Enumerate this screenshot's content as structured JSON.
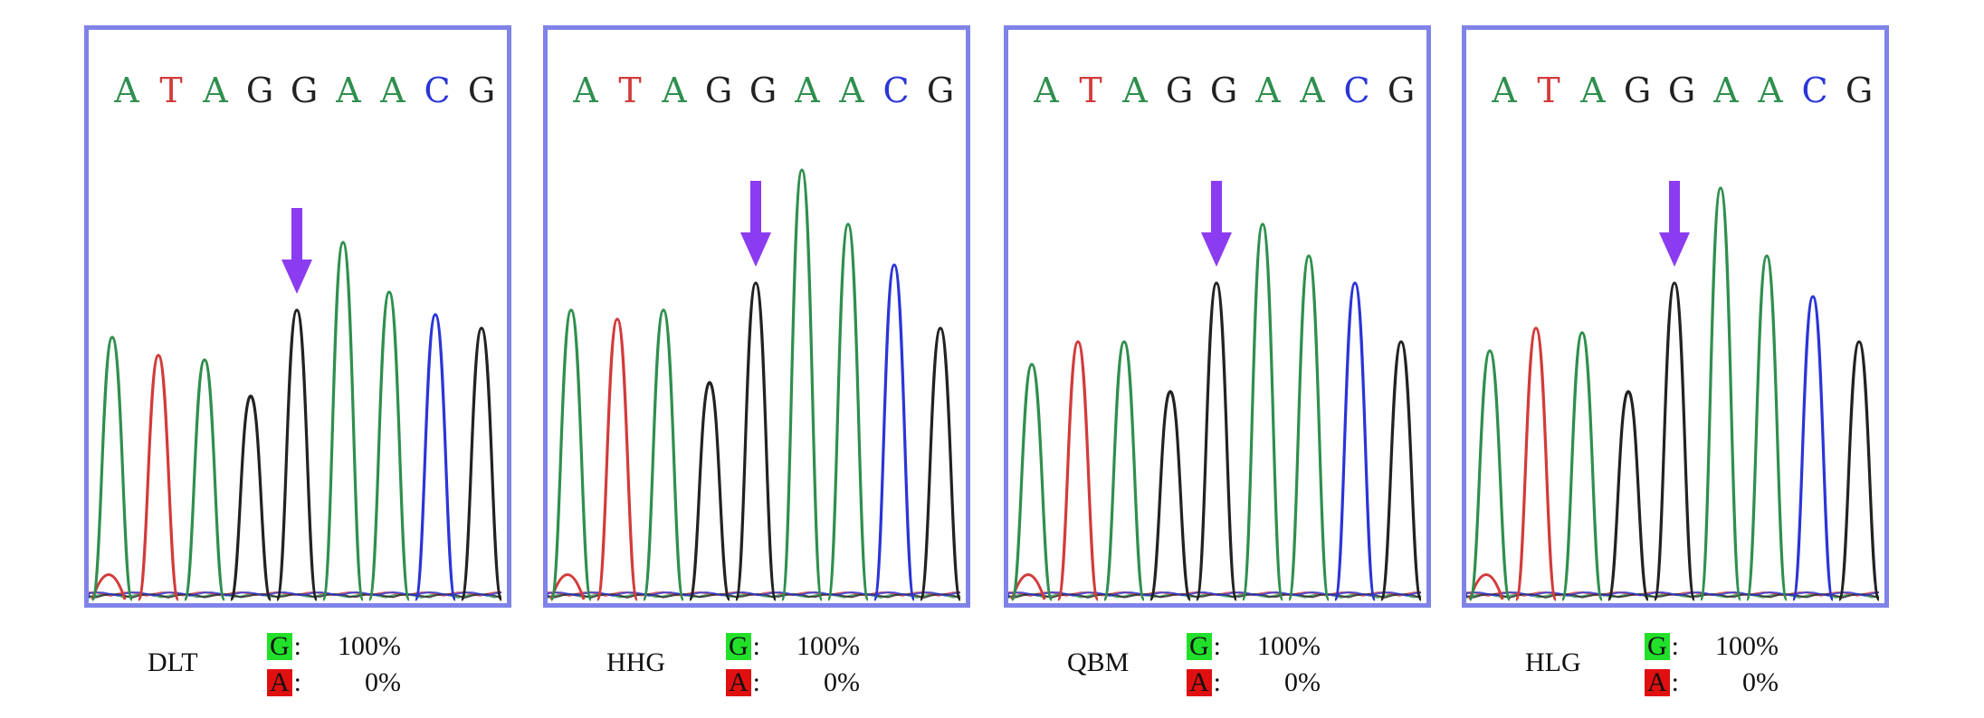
{
  "colors": {
    "A": "#2f8f4e",
    "T": "#d23b3b",
    "G": "#222222",
    "C": "#2b35d6",
    "frame": "#7f83e8",
    "arrow": "#8c3cf0",
    "g_highlight": "#22e02a",
    "a_highlight": "#e01010"
  },
  "sequence": [
    "A",
    "T",
    "A",
    "G",
    "G",
    "A",
    "A",
    "C",
    "G"
  ],
  "panels": [
    {
      "sample": "DLT",
      "alleles": [
        {
          "base": "G",
          "sep": ":",
          "percent": "100%"
        },
        {
          "base": "A",
          "sep": ":",
          "percent": "0%"
        }
      ],
      "peaks": [
        0.58,
        0.54,
        0.53,
        0.45,
        0.64,
        0.79,
        0.68,
        0.63,
        0.6
      ],
      "arrow_peak_index": 4
    },
    {
      "sample": "HHG",
      "alleles": [
        {
          "base": "G",
          "sep": ":",
          "percent": "100%"
        },
        {
          "base": "A",
          "sep": ":",
          "percent": "0%"
        }
      ],
      "peaks": [
        0.64,
        0.62,
        0.64,
        0.48,
        0.7,
        0.95,
        0.83,
        0.74,
        0.6
      ],
      "arrow_peak_index": 4
    },
    {
      "sample": "QBM",
      "alleles": [
        {
          "base": "G",
          "sep": ":",
          "percent": "100%"
        },
        {
          "base": "A",
          "sep": ":",
          "percent": "0%"
        }
      ],
      "peaks": [
        0.52,
        0.57,
        0.57,
        0.46,
        0.7,
        0.83,
        0.76,
        0.7,
        0.57
      ],
      "arrow_peak_index": 4
    },
    {
      "sample": "HLG",
      "alleles": [
        {
          "base": "G",
          "sep": ":",
          "percent": "100%"
        },
        {
          "base": "A",
          "sep": ":",
          "percent": "0%"
        }
      ],
      "peaks": [
        0.55,
        0.6,
        0.59,
        0.46,
        0.7,
        0.91,
        0.76,
        0.67,
        0.57
      ],
      "arrow_peak_index": 4
    }
  ]
}
